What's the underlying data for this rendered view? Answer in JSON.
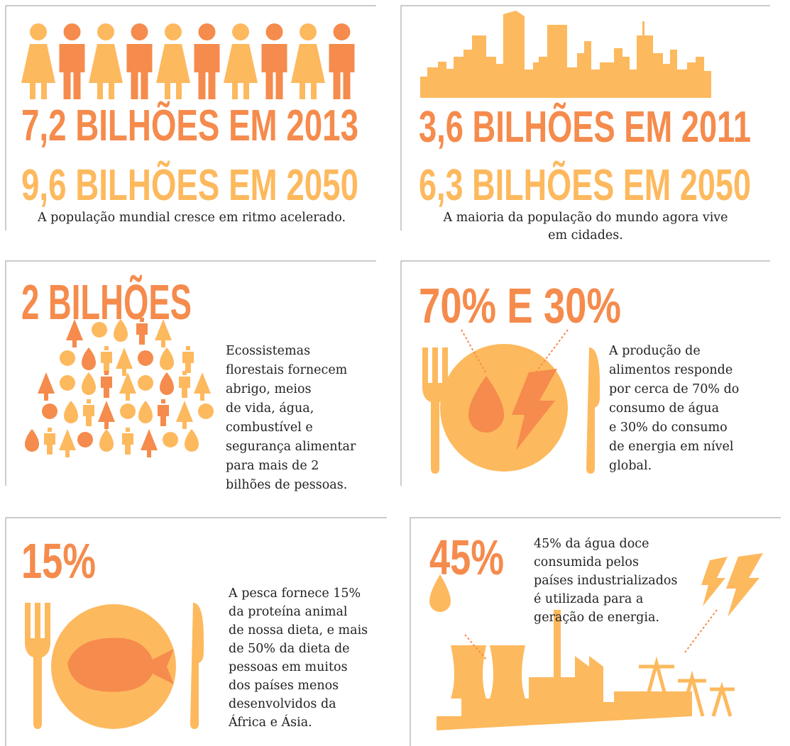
{
  "panels": [
    {
      "headline": [
        "7,2 BILHÕES EM 2013",
        "9,6 BILHÕES EM 2050"
      ],
      "body": [
        "A população mundial cresce em ritmo acelerado."
      ]
    },
    {
      "headline": [
        "3,6 BILHÕES EM 2011",
        "6,3 BILHÕES EM 2050"
      ],
      "body": [
        "A maioria da população do mundo agora vive",
        "em cidades."
      ]
    },
    {
      "headline": [
        "2 BILHÕES"
      ],
      "body": [
        "Ecossistemas",
        "florestais fornecem",
        "abrigo, meios",
        "de vida, água,",
        "combustível e",
        "segurança alimentar",
        "para mais de 2",
        "bilhões de pessoas."
      ]
    },
    {
      "headline": [
        "70% E 30%"
      ],
      "body": [
        "A produção de",
        "alimentos responde",
        "por cerca de 70% do",
        "consumo de água",
        "e 30% do consumo",
        "de energia em nível",
        "global."
      ]
    },
    {
      "headline": [
        "15%"
      ],
      "body": [
        "A pesca fornece 15%",
        "da proteína animal",
        "de nossa dieta, e mais",
        "de 50% da dieta de",
        "pessoas em muitos",
        "dos países menos",
        "desenvolvidos da",
        "África e Ásia."
      ]
    },
    {
      "headline": [
        "45%"
      ],
      "body": [
        "45% da água doce",
        "consumida pelos",
        "países industrializados",
        "é utilizada para a",
        "geração de energia."
      ]
    }
  ]
}
